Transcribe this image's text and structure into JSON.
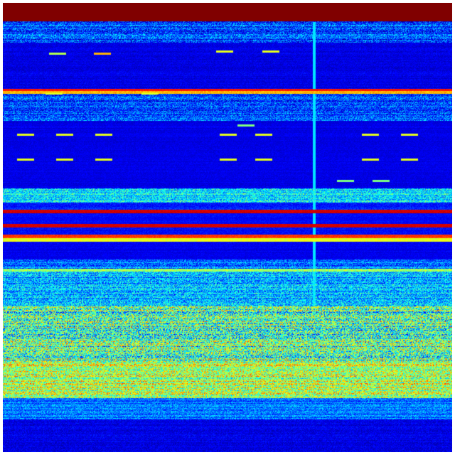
{
  "chart_data": {
    "type": "heatmap",
    "title": "",
    "xlabel": "",
    "ylabel": "",
    "colormap": "jet",
    "colormap_stops": [
      "#00008f",
      "#0000ff",
      "#00ffff",
      "#ffff00",
      "#ff0000",
      "#800000"
    ],
    "value_range": [
      0,
      1
    ],
    "grid": false,
    "legend": "none"
  }
}
